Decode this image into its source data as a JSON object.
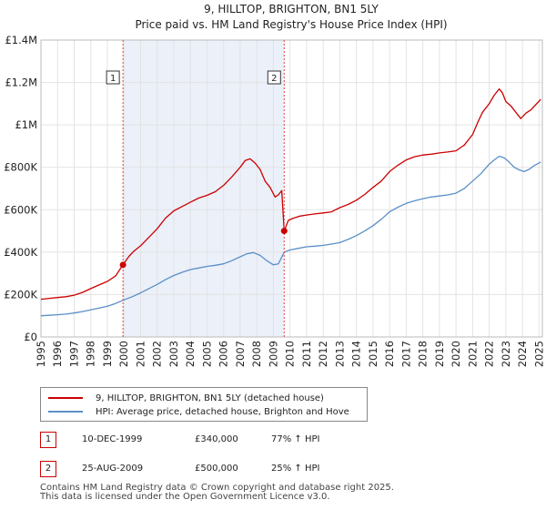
{
  "chart_data": {
    "type": "line",
    "title": "9, HILLTOP, BRIGHTON, BN1 5LY",
    "subtitle": "Price paid vs. HM Land Registry's House Price Index (HPI)",
    "xlabel": "",
    "ylabel": "",
    "xlim": [
      1995,
      2025.2
    ],
    "ylim": [
      0,
      1400000
    ],
    "y_ticks": [
      0,
      200000,
      400000,
      600000,
      800000,
      1000000,
      1200000,
      1400000
    ],
    "y_tick_labels": [
      "£0",
      "£200K",
      "£400K",
      "£600K",
      "£800K",
      "£1M",
      "£1.2M",
      "£1.4M"
    ],
    "x_ticks": [
      1995,
      1996,
      1997,
      1998,
      1999,
      2000,
      2001,
      2002,
      2003,
      2004,
      2005,
      2006,
      2007,
      2008,
      2009,
      2010,
      2011,
      2012,
      2013,
      2014,
      2015,
      2016,
      2017,
      2018,
      2019,
      2020,
      2021,
      2022,
      2023,
      2024,
      2025
    ],
    "grid": true,
    "shaded_range": [
      1999.94,
      2009.65
    ],
    "series": [
      {
        "name": "9, HILLTOP, BRIGHTON, BN1 5LY (detached house)",
        "color": "#cc0000",
        "x": [
          1995,
          1995.5,
          1996,
          1996.5,
          1997,
          1997.5,
          1998,
          1998.5,
          1999,
          1999.5,
          1999.94,
          2000.3,
          2000.6,
          2001,
          2001.5,
          2002,
          2002.5,
          2003,
          2003.5,
          2004,
          2004.5,
          2005,
          2005.5,
          2006,
          2006.5,
          2007,
          2007.3,
          2007.6,
          2007.9,
          2008.2,
          2008.5,
          2008.8,
          2009.1,
          2009.3,
          2009.5,
          2009.65,
          2009.9,
          2010.2,
          2010.6,
          2011,
          2011.5,
          2012,
          2012.5,
          2013,
          2013.5,
          2014,
          2014.5,
          2015,
          2015.5,
          2016,
          2016.5,
          2017,
          2017.5,
          2018,
          2018.5,
          2019,
          2019.5,
          2020,
          2020.5,
          2021,
          2021.3,
          2021.6,
          2022,
          2022.3,
          2022.6,
          2022.8,
          2023,
          2023.3,
          2023.6,
          2023.9,
          2024.2,
          2024.5,
          2024.8,
          2025.1
        ],
        "values": [
          178000,
          182000,
          186000,
          190000,
          197000,
          210000,
          228000,
          245000,
          262000,
          288000,
          340000,
          380000,
          405000,
          430000,
          470000,
          510000,
          560000,
          595000,
          615000,
          635000,
          655000,
          668000,
          685000,
          715000,
          755000,
          800000,
          832000,
          840000,
          820000,
          790000,
          735000,
          705000,
          660000,
          670000,
          690000,
          500000,
          550000,
          560000,
          570000,
          575000,
          580000,
          585000,
          590000,
          610000,
          625000,
          645000,
          672000,
          705000,
          735000,
          780000,
          810000,
          835000,
          850000,
          858000,
          862000,
          868000,
          872000,
          878000,
          905000,
          955000,
          1010000,
          1060000,
          1100000,
          1140000,
          1170000,
          1150000,
          1110000,
          1090000,
          1060000,
          1030000,
          1055000,
          1070000,
          1095000,
          1120000
        ]
      },
      {
        "name": "HPI: Average price, detached house, Brighton and Hove",
        "color": "#5b8fc7",
        "x": [
          1995,
          1995.5,
          1996,
          1996.5,
          1997,
          1997.5,
          1998,
          1998.5,
          1999,
          1999.5,
          2000,
          2000.5,
          2001,
          2001.5,
          2002,
          2002.5,
          2003,
          2003.5,
          2004,
          2004.5,
          2005,
          2005.5,
          2006,
          2006.5,
          2007,
          2007.4,
          2007.8,
          2008.2,
          2008.6,
          2009,
          2009.3,
          2009.65,
          2010,
          2010.5,
          2011,
          2011.5,
          2012,
          2012.5,
          2013,
          2013.5,
          2014,
          2014.5,
          2015,
          2015.5,
          2016,
          2016.5,
          2017,
          2017.5,
          2018,
          2018.5,
          2019,
          2019.5,
          2020,
          2020.5,
          2021,
          2021.5,
          2022,
          2022.3,
          2022.6,
          2022.9,
          2023.2,
          2023.5,
          2023.8,
          2024.1,
          2024.4,
          2024.7,
          2025.1
        ],
        "values": [
          100000,
          102000,
          105000,
          108000,
          113000,
          120000,
          128000,
          136000,
          145000,
          158000,
          175000,
          190000,
          208000,
          228000,
          248000,
          270000,
          290000,
          305000,
          318000,
          325000,
          333000,
          338000,
          345000,
          360000,
          378000,
          392000,
          398000,
          385000,
          360000,
          340000,
          345000,
          400000,
          410000,
          418000,
          425000,
          428000,
          432000,
          438000,
          445000,
          460000,
          478000,
          500000,
          525000,
          555000,
          590000,
          612000,
          630000,
          642000,
          652000,
          660000,
          665000,
          670000,
          678000,
          700000,
          735000,
          770000,
          815000,
          835000,
          852000,
          845000,
          825000,
          800000,
          788000,
          780000,
          790000,
          808000,
          825000
        ]
      }
    ],
    "markers": [
      {
        "label": "1",
        "x": 1999.94,
        "value": 340000
      },
      {
        "label": "2",
        "x": 2009.65,
        "value": 500000
      }
    ]
  },
  "legend": {
    "items": [
      {
        "label": "9, HILLTOP, BRIGHTON, BN1 5LY (detached house)",
        "color": "#cc0000"
      },
      {
        "label": "HPI: Average price, detached house, Brighton and Hove",
        "color": "#5b8fc7"
      }
    ]
  },
  "sales": [
    {
      "label": "1",
      "date": "10-DEC-1999",
      "price": "£340,000",
      "hpi": "77% ↑ HPI"
    },
    {
      "label": "2",
      "date": "25-AUG-2009",
      "price": "£500,000",
      "hpi": "25% ↑ HPI"
    }
  ],
  "footer": {
    "line1": "Contains HM Land Registry data © Crown copyright and database right 2025.",
    "line2": "This data is licensed under the Open Government Licence v3.0."
  }
}
